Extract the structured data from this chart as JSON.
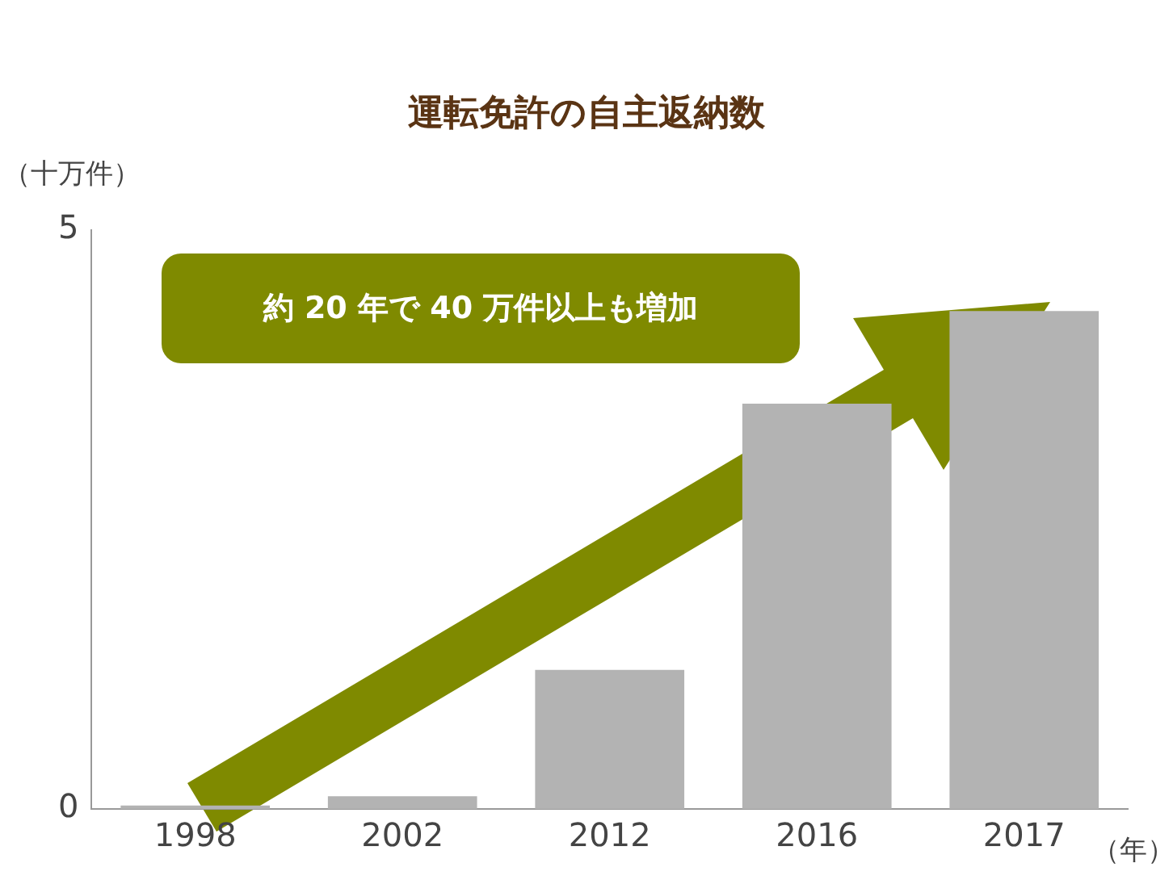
{
  "chart_data": {
    "type": "bar",
    "title": "運転免許の自主返納数",
    "ylabel": "（十万件）",
    "xlabel": "（年）",
    "categories": [
      "1998",
      "2002",
      "2012",
      "2016",
      "2017"
    ],
    "values": [
      0.03,
      0.11,
      1.2,
      3.5,
      4.3
    ],
    "color": "#b3b3b3",
    "ylim": [
      0,
      5
    ],
    "yticks": [
      0,
      5
    ],
    "grid": false,
    "annotations": [
      "約 20 年で 40 万件以上も増加"
    ]
  }
}
